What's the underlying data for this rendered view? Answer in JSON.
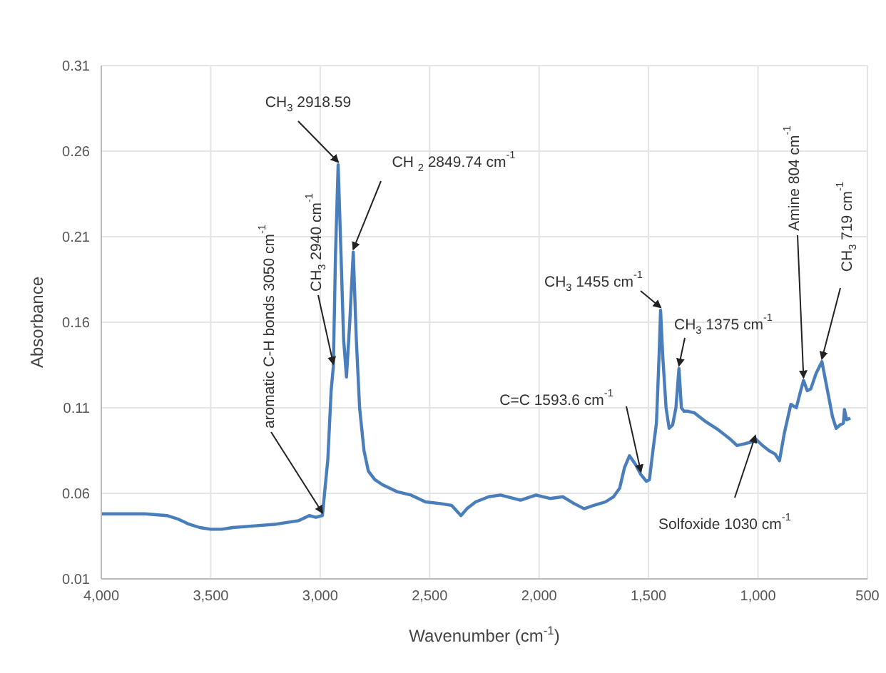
{
  "chart_data": {
    "type": "line",
    "xlabel": "Wavenumber (cm$^{-1}$)",
    "ylabel": "Absorbance",
    "xlim": [
      4000,
      500
    ],
    "ylim": [
      0.01,
      0.31
    ],
    "xticks": [
      {
        "value": 4000,
        "label": "4,000"
      },
      {
        "value": 3500,
        "label": "3,500"
      },
      {
        "value": 3000,
        "label": "3,000"
      },
      {
        "value": 2500,
        "label": "2,500"
      },
      {
        "value": 2000,
        "label": "2,000"
      },
      {
        "value": 1500,
        "label": "1,500"
      },
      {
        "value": 1000,
        "label": "1,000"
      },
      500
    ],
    "yticks": [
      0.01,
      0.06,
      0.11,
      0.16,
      0.21,
      0.26,
      0.31
    ],
    "grid": true,
    "marker": "none",
    "line_style": "solid",
    "series": [
      {
        "color": "#4a7ebb",
        "x": [
          4000,
          3900,
          3800,
          3700,
          3650,
          3600,
          3550,
          3500,
          3450,
          3400,
          3300,
          3200,
          3100,
          3050,
          3020,
          2990,
          2965,
          2950,
          2940,
          2930,
          2918,
          2905,
          2893,
          2880,
          2865,
          2849,
          2835,
          2820,
          2800,
          2780,
          2750,
          2715,
          2650,
          2585,
          2519,
          2450,
          2400,
          2357,
          2330,
          2290,
          2230,
          2176,
          2085,
          2014,
          1950,
          1891,
          1840,
          1794,
          1750,
          1697,
          1660,
          1632,
          1610,
          1587,
          1560,
          1535,
          1510,
          1496,
          1480,
          1464,
          1452,
          1445,
          1435,
          1420,
          1406,
          1390,
          1375,
          1361,
          1350,
          1338,
          1320,
          1290,
          1240,
          1180,
          1130,
          1096,
          1060,
          1030,
          1012,
          980,
          950,
          922,
          902,
          880,
          850,
          825,
          805,
          792,
          775,
          759,
          735,
          708,
          690,
          675,
          660,
          643,
          625,
          610,
          605,
          595,
          578
        ],
        "values": [
          0.048,
          0.048,
          0.048,
          0.047,
          0.045,
          0.042,
          0.04,
          0.039,
          0.039,
          0.04,
          0.041,
          0.042,
          0.044,
          0.047,
          0.046,
          0.047,
          0.08,
          0.12,
          0.134,
          0.2,
          0.252,
          0.2,
          0.15,
          0.128,
          0.16,
          0.201,
          0.15,
          0.11,
          0.085,
          0.073,
          0.068,
          0.065,
          0.061,
          0.059,
          0.055,
          0.054,
          0.053,
          0.047,
          0.051,
          0.055,
          0.058,
          0.059,
          0.056,
          0.059,
          0.057,
          0.058,
          0.054,
          0.051,
          0.053,
          0.055,
          0.058,
          0.063,
          0.075,
          0.082,
          0.077,
          0.071,
          0.067,
          0.068,
          0.085,
          0.101,
          0.14,
          0.167,
          0.14,
          0.11,
          0.098,
          0.1,
          0.11,
          0.133,
          0.11,
          0.108,
          0.108,
          0.107,
          0.102,
          0.097,
          0.092,
          0.088,
          0.089,
          0.09,
          0.092,
          0.088,
          0.085,
          0.083,
          0.079,
          0.095,
          0.112,
          0.11,
          0.12,
          0.126,
          0.12,
          0.121,
          0.13,
          0.137,
          0.125,
          0.115,
          0.105,
          0.098,
          0.1,
          0.101,
          0.109,
          0.103,
          0.104
        ]
      }
    ],
    "annotations": [
      {
        "text": "CH$_{3}$ 2918.59",
        "x": 2918,
        "y": 0.252
      },
      {
        "text": "CH $_{2}$ 2849.74 cm$^{-1}$",
        "x": 2849,
        "y": 0.201
      },
      {
        "text": "CH$_{3}$ 2940 cm$^{-1}$",
        "x": 2940,
        "y": 0.134
      },
      {
        "text": "aromatic C-H bonds  3050 cm$^{-1}$",
        "x": 2990,
        "y": 0.047
      },
      {
        "text": "C=C 1593.6 cm$^{-1}$",
        "x": 1535,
        "y": 0.071
      },
      {
        "text": "CH$_{3}$ 1455 cm$^{-1}$",
        "x": 1445,
        "y": 0.167
      },
      {
        "text": "CH$_{3}$ 1375 cm$^{-1}$",
        "x": 1361,
        "y": 0.133
      },
      {
        "text": "Amine 804 cm$^{-1}$",
        "x": 792,
        "y": 0.126
      },
      {
        "text": "CH$_{3}$ 719 cm$^{-1}$",
        "x": 708,
        "y": 0.137
      },
      {
        "text": "Solfoxide 1030 cm$^{-1}$",
        "x": 1012,
        "y": 0.092
      }
    ]
  }
}
